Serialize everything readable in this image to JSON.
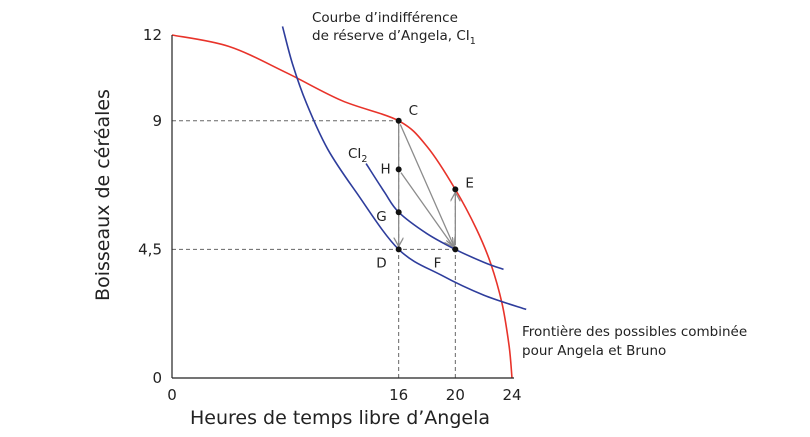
{
  "chart_data": {
    "type": "line",
    "xlabel": "Heures de temps libre d’Angela",
    "ylabel": "Boisseaux de céréales",
    "xlim": [
      0,
      24
    ],
    "ylim": [
      0,
      12
    ],
    "x_ticks": [
      {
        "value": 0,
        "label": "0"
      },
      {
        "value": 16,
        "label": "16"
      },
      {
        "value": 20,
        "label": "20"
      },
      {
        "value": 24,
        "label": "24"
      }
    ],
    "y_ticks": [
      {
        "value": 0,
        "label": "0"
      },
      {
        "value": 4.5,
        "label": "4,5"
      },
      {
        "value": 9,
        "label": "9"
      },
      {
        "value": 12,
        "label": "12"
      }
    ],
    "series": [
      {
        "name": "Frontière des possibles combinée pour Angela et Bruno",
        "color": "#e8332a",
        "points": [
          [
            0,
            12
          ],
          [
            4,
            11.6
          ],
          [
            8,
            10.7
          ],
          [
            12,
            9.7
          ],
          [
            16,
            9
          ],
          [
            18,
            8.1
          ],
          [
            20,
            6.6
          ],
          [
            21.5,
            5.2
          ],
          [
            22.5,
            4.0
          ],
          [
            23.3,
            2.6
          ],
          [
            23.8,
            1.1
          ],
          [
            24,
            0
          ]
        ]
      },
      {
        "name": "CI₁",
        "color": "#2e3d9c",
        "points": [
          [
            7.8,
            12.3
          ],
          [
            8.5,
            11.0
          ],
          [
            9.5,
            9.6
          ],
          [
            11,
            8.0
          ],
          [
            13,
            6.5
          ],
          [
            16,
            4.5
          ],
          [
            19,
            3.6
          ],
          [
            22,
            2.9
          ],
          [
            25,
            2.4
          ]
        ]
      },
      {
        "name": "CI₂",
        "color": "#2e3d9c",
        "points": [
          [
            13.7,
            7.5
          ],
          [
            15,
            6.5
          ],
          [
            16,
            5.8
          ],
          [
            18,
            5.05
          ],
          [
            20,
            4.5
          ],
          [
            22,
            4.05
          ],
          [
            23.4,
            3.8
          ]
        ]
      }
    ],
    "points": [
      {
        "label": "C",
        "x": 16,
        "y": 9
      },
      {
        "label": "E",
        "x": 20,
        "y": 6.6
      },
      {
        "label": "H",
        "x": 16,
        "y": 7.3
      },
      {
        "label": "G",
        "x": 16,
        "y": 5.8
      },
      {
        "label": "D",
        "x": 16,
        "y": 4.5
      },
      {
        "label": "F",
        "x": 20,
        "y": 4.5
      }
    ],
    "arrows": [
      {
        "from": "C",
        "to": "D"
      },
      {
        "from": "C",
        "to": "F"
      },
      {
        "from": "H",
        "to": "F"
      },
      {
        "from": "F",
        "to": "E"
      }
    ],
    "guides": [
      {
        "from": [
          0,
          9
        ],
        "to": [
          16,
          9
        ]
      },
      {
        "from": [
          0,
          4.5
        ],
        "to": [
          20,
          4.5
        ]
      },
      {
        "from": [
          16,
          0
        ],
        "to": [
          16,
          9
        ]
      },
      {
        "from": [
          20,
          0
        ],
        "to": [
          20,
          6.6
        ]
      }
    ],
    "annotations": {
      "ci1_line1": "Courbe d’indifférence",
      "ci1_line2": "de réserve d’Angela, CI",
      "ci1_sub": "1",
      "ci2_main": "CI",
      "ci2_sub": "2",
      "frontier_line1": "Frontière des possibles combinée",
      "frontier_line2": "pour Angela et Bruno"
    },
    "colors": {
      "frontier": "#e8332a",
      "indifference": "#2e3d9c",
      "arrow": "#8c8c8c",
      "guide": "#666666",
      "axis": "#222222"
    }
  }
}
